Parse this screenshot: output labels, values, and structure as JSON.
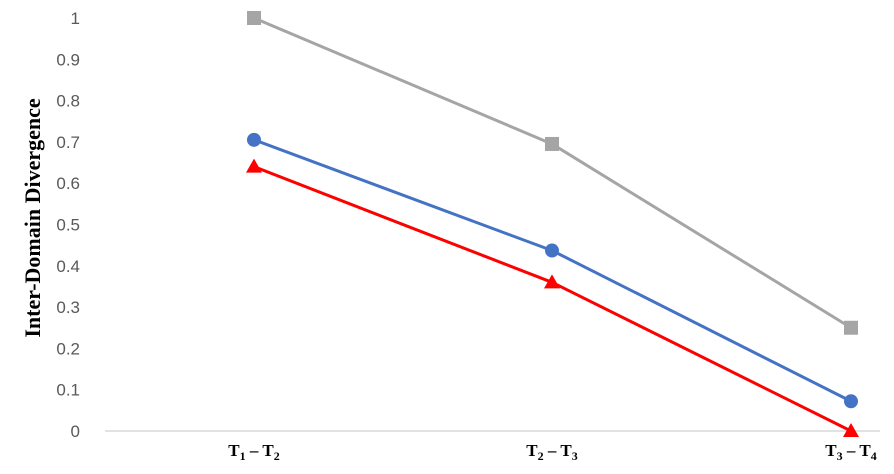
{
  "chart_data": {
    "type": "line",
    "ylabel": "Inter-Domain Divergence",
    "xlabel": "",
    "categories": [
      "T1 – T2",
      "T2 – T3",
      "T3 – T4"
    ],
    "category_parts": [
      [
        [
          "T",
          "1"
        ],
        [
          "T",
          "2"
        ]
      ],
      [
        [
          "T",
          "2"
        ],
        [
          "T",
          "3"
        ]
      ],
      [
        [
          "T",
          "3"
        ],
        [
          "T",
          "4"
        ]
      ]
    ],
    "ylim": [
      0,
      1
    ],
    "yticks": [
      "0",
      "0.1",
      "0.2",
      "0.3",
      "0.4",
      "0.5",
      "0.6",
      "0.7",
      "0.8",
      "0.9",
      "1"
    ],
    "grid": false,
    "series": [
      {
        "values": [
          1.0,
          0.695,
          0.25
        ],
        "color": "#a5a5a5",
        "marker": "square"
      },
      {
        "values": [
          0.705,
          0.437,
          0.072
        ],
        "color": "#4472c4",
        "marker": "circle"
      },
      {
        "values": [
          0.64,
          0.36,
          0.0
        ],
        "color": "#ff0000",
        "marker": "triangle"
      }
    ]
  }
}
